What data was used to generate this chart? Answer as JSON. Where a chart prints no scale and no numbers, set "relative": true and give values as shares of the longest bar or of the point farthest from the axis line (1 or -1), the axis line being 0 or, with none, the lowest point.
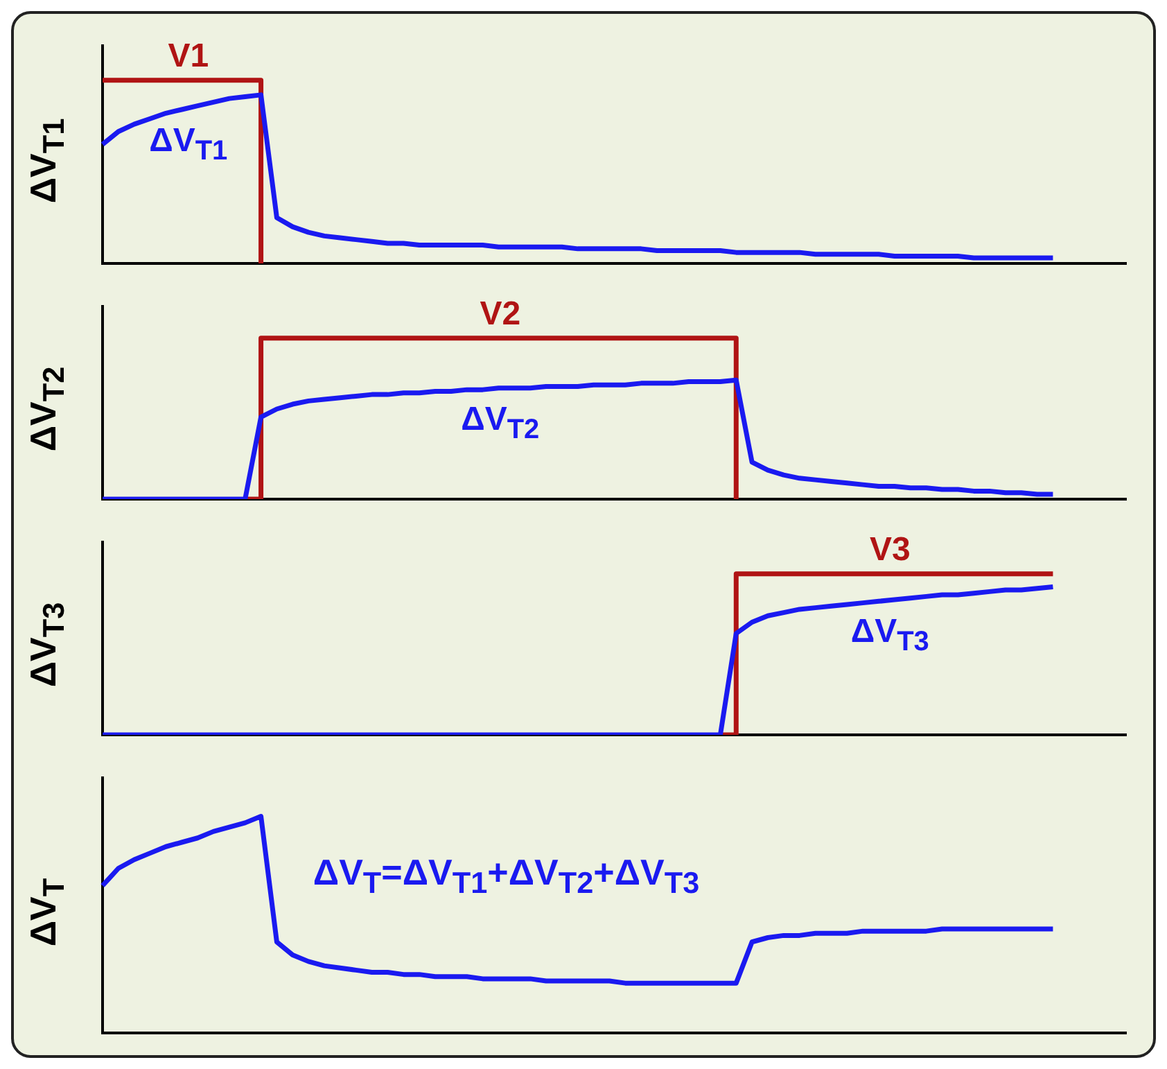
{
  "chart_data": [
    {
      "type": "line",
      "relative": true,
      "ylabel": "ΔV$_{T1}$",
      "categories": [
        null,
        null,
        null,
        null,
        null,
        null,
        null,
        null,
        null,
        null,
        null,
        null,
        null,
        null,
        null,
        null,
        null,
        null,
        null,
        null,
        null,
        null,
        null,
        null,
        null,
        null,
        null,
        null,
        null,
        null,
        null,
        null,
        null,
        null,
        null,
        null,
        null,
        null,
        null,
        null,
        null,
        null,
        null,
        null,
        null,
        null,
        null,
        null,
        null,
        null,
        null,
        null,
        null,
        null,
        null,
        null,
        null,
        null,
        null,
        null,
        null,
        null,
        null,
        null
      ],
      "series": [
        {
          "name": "V1",
          "type": "step",
          "color": "#b01414",
          "values": [
            1,
            1,
            1,
            1,
            1,
            1,
            1,
            1,
            1,
            1,
            0,
            null,
            null,
            null,
            null,
            null,
            null,
            null,
            null,
            null,
            null,
            null,
            null,
            null,
            null,
            null,
            null,
            null,
            null,
            null,
            null,
            null,
            null,
            null,
            null,
            null,
            null,
            null,
            null,
            null,
            null,
            null,
            null,
            null,
            null,
            null,
            null,
            null,
            null,
            null,
            null,
            null,
            null,
            null,
            null,
            null,
            null,
            null,
            null,
            null,
            null,
            null,
            null,
            null
          ]
        },
        {
          "name": "ΔV$_{T1}$",
          "color": "#1a1af0",
          "values": [
            0.65,
            0.72,
            0.76,
            0.79,
            0.82,
            0.84,
            0.86,
            0.88,
            0.9,
            0.91,
            0.92,
            0.25,
            0.2,
            0.17,
            0.15,
            0.14,
            0.13,
            0.12,
            0.11,
            0.11,
            0.1,
            0.1,
            0.1,
            0.1,
            0.1,
            0.09,
            0.09,
            0.09,
            0.09,
            0.09,
            0.08,
            0.08,
            0.08,
            0.08,
            0.08,
            0.07,
            0.07,
            0.07,
            0.07,
            0.07,
            0.06,
            0.06,
            0.06,
            0.06,
            0.06,
            0.05,
            0.05,
            0.05,
            0.05,
            0.05,
            0.04,
            0.04,
            0.04,
            0.04,
            0.04,
            0.03,
            0.03,
            0.03,
            0.03,
            0.03,
            0.03,
            null,
            null,
            null
          ]
        }
      ]
    },
    {
      "type": "line",
      "relative": true,
      "ylabel": "ΔV$_{T2}$",
      "categories": [
        null,
        null,
        null,
        null,
        null,
        null,
        null,
        null,
        null,
        null,
        null,
        null,
        null,
        null,
        null,
        null,
        null,
        null,
        null,
        null,
        null,
        null,
        null,
        null,
        null,
        null,
        null,
        null,
        null,
        null,
        null,
        null,
        null,
        null,
        null,
        null,
        null,
        null,
        null,
        null,
        null,
        null,
        null,
        null,
        null,
        null,
        null,
        null,
        null,
        null,
        null,
        null,
        null,
        null,
        null,
        null,
        null,
        null,
        null,
        null,
        null,
        null,
        null,
        null
      ],
      "series": [
        {
          "name": "V2",
          "type": "step",
          "color": "#b01414",
          "values": [
            null,
            null,
            null,
            null,
            null,
            null,
            null,
            null,
            null,
            0,
            1,
            1,
            1,
            1,
            1,
            1,
            1,
            1,
            1,
            1,
            1,
            1,
            1,
            1,
            1,
            1,
            1,
            1,
            1,
            1,
            1,
            1,
            1,
            1,
            1,
            1,
            1,
            1,
            1,
            1,
            0,
            null,
            null,
            null,
            null,
            null,
            null,
            null,
            null,
            null,
            null,
            null,
            null,
            null,
            null,
            null,
            null,
            null,
            null,
            null,
            null,
            null,
            null,
            null
          ]
        },
        {
          "name": "ΔV$_{T2}$",
          "color": "#1a1af0",
          "values": [
            0,
            0,
            0,
            0,
            0,
            0,
            0,
            0,
            0,
            0,
            0.51,
            0.56,
            0.59,
            0.61,
            0.62,
            0.63,
            0.64,
            0.65,
            0.65,
            0.66,
            0.66,
            0.67,
            0.67,
            0.68,
            0.68,
            0.69,
            0.69,
            0.69,
            0.7,
            0.7,
            0.7,
            0.71,
            0.71,
            0.71,
            0.72,
            0.72,
            0.72,
            0.73,
            0.73,
            0.73,
            0.74,
            0.23,
            0.18,
            0.15,
            0.13,
            0.12,
            0.11,
            0.1,
            0.09,
            0.08,
            0.08,
            0.07,
            0.07,
            0.06,
            0.06,
            0.05,
            0.05,
            0.04,
            0.04,
            0.03,
            0.03,
            null,
            null,
            null
          ]
        }
      ]
    },
    {
      "type": "line",
      "relative": true,
      "ylabel": "ΔV$_{T3}$",
      "categories": [
        null,
        null,
        null,
        null,
        null,
        null,
        null,
        null,
        null,
        null,
        null,
        null,
        null,
        null,
        null,
        null,
        null,
        null,
        null,
        null,
        null,
        null,
        null,
        null,
        null,
        null,
        null,
        null,
        null,
        null,
        null,
        null,
        null,
        null,
        null,
        null,
        null,
        null,
        null,
        null,
        null,
        null,
        null,
        null,
        null,
        null,
        null,
        null,
        null,
        null,
        null,
        null,
        null,
        null,
        null,
        null,
        null,
        null,
        null,
        null,
        null,
        null,
        null,
        null
      ],
      "series": [
        {
          "name": "V3",
          "type": "step",
          "color": "#b01414",
          "values": [
            null,
            null,
            null,
            null,
            null,
            null,
            null,
            null,
            null,
            null,
            null,
            null,
            null,
            null,
            null,
            null,
            null,
            null,
            null,
            null,
            null,
            null,
            null,
            null,
            null,
            null,
            null,
            null,
            null,
            null,
            null,
            null,
            null,
            null,
            null,
            null,
            null,
            null,
            null,
            0,
            1,
            1,
            1,
            1,
            1,
            1,
            1,
            1,
            1,
            1,
            1,
            1,
            1,
            1,
            1,
            1,
            1,
            1,
            1,
            1,
            1,
            null,
            null,
            null
          ]
        },
        {
          "name": "ΔV$_{T3}$",
          "color": "#1a1af0",
          "values": [
            0,
            0,
            0,
            0,
            0,
            0,
            0,
            0,
            0,
            0,
            0,
            0,
            0,
            0,
            0,
            0,
            0,
            0,
            0,
            0,
            0,
            0,
            0,
            0,
            0,
            0,
            0,
            0,
            0,
            0,
            0,
            0,
            0,
            0,
            0,
            0,
            0,
            0,
            0,
            0,
            0.63,
            0.7,
            0.74,
            0.76,
            0.78,
            0.79,
            0.8,
            0.81,
            0.82,
            0.83,
            0.84,
            0.85,
            0.86,
            0.87,
            0.87,
            0.88,
            0.89,
            0.9,
            0.9,
            0.91,
            0.92,
            null,
            null,
            null
          ]
        }
      ]
    },
    {
      "type": "line",
      "relative": true,
      "ylabel": "ΔV$_{T}$",
      "annotations": [
        "ΔV$_{T}$=ΔV$_{T1}$+ΔV$_{T2}$+ΔV$_{T3}$"
      ],
      "categories": [
        null,
        null,
        null,
        null,
        null,
        null,
        null,
        null,
        null,
        null,
        null,
        null,
        null,
        null,
        null,
        null,
        null,
        null,
        null,
        null,
        null,
        null,
        null,
        null,
        null,
        null,
        null,
        null,
        null,
        null,
        null,
        null,
        null,
        null,
        null,
        null,
        null,
        null,
        null,
        null,
        null,
        null,
        null,
        null,
        null,
        null,
        null,
        null,
        null,
        null,
        null,
        null,
        null,
        null,
        null,
        null,
        null,
        null,
        null,
        null,
        null,
        null,
        null,
        null
      ],
      "series": [
        {
          "color": "#1a1af0",
          "values": [
            0.68,
            0.76,
            0.8,
            0.83,
            0.86,
            0.88,
            0.9,
            0.93,
            0.95,
            0.97,
            1,
            0.42,
            0.36,
            0.33,
            0.31,
            0.3,
            0.29,
            0.28,
            0.28,
            0.27,
            0.27,
            0.26,
            0.26,
            0.26,
            0.25,
            0.25,
            0.25,
            0.25,
            0.24,
            0.24,
            0.24,
            0.24,
            0.24,
            0.23,
            0.23,
            0.23,
            0.23,
            0.23,
            0.23,
            0.23,
            0.23,
            0.42,
            0.44,
            0.45,
            0.45,
            0.46,
            0.46,
            0.46,
            0.47,
            0.47,
            0.47,
            0.47,
            0.47,
            0.48,
            0.48,
            0.48,
            0.48,
            0.48,
            0.48,
            0.48,
            0.48,
            null,
            null,
            null
          ]
        }
      ]
    }
  ]
}
